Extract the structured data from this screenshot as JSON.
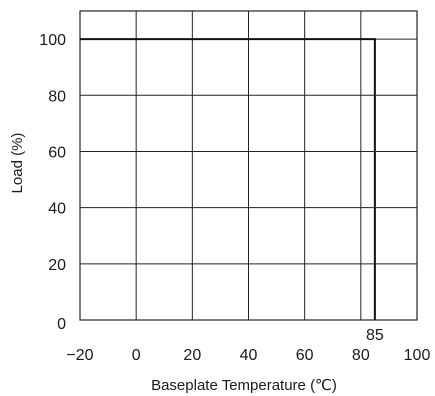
{
  "chart_data": {
    "type": "line",
    "xlabel": "Baseplate Temperature (℃)",
    "ylabel": "Load (%)",
    "xlim": [
      -20,
      100
    ],
    "ylim": [
      0,
      110
    ],
    "x_ticks": [
      "−20",
      "0",
      "20",
      "40",
      "60",
      "80",
      "100"
    ],
    "y_ticks": [
      "0",
      "20",
      "40",
      "60",
      "80",
      "100"
    ],
    "grid": true,
    "series": [
      {
        "x": [
          -20,
          85,
          85
        ],
        "y": [
          100,
          100,
          0
        ]
      }
    ],
    "annotations": [
      {
        "text": "85",
        "x": 85,
        "y": 0
      }
    ]
  }
}
